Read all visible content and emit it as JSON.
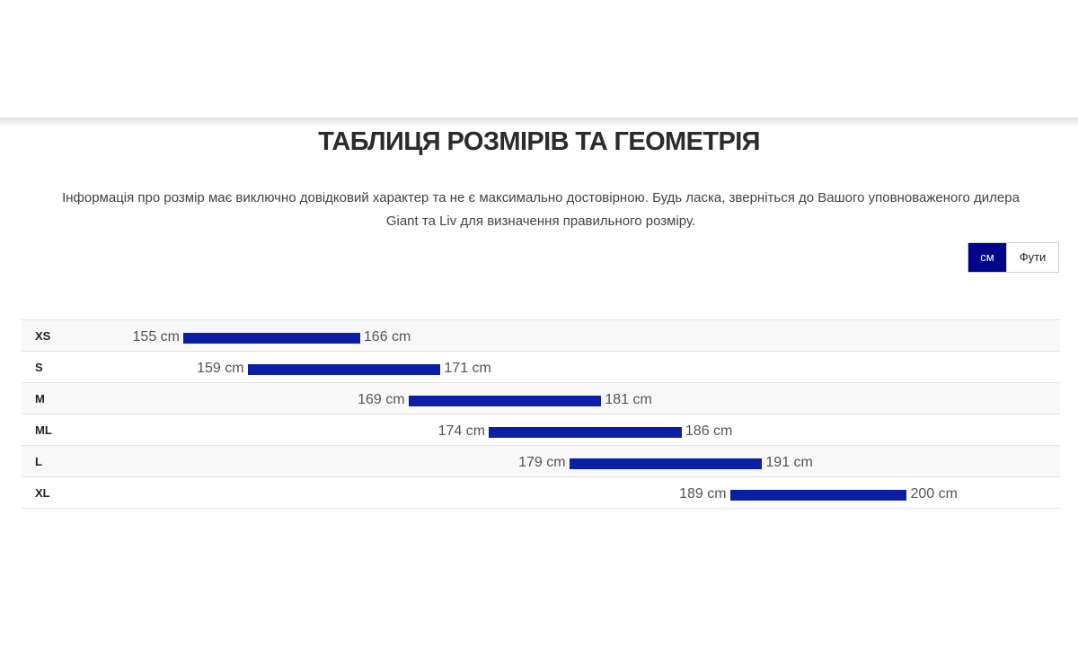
{
  "page": {
    "title": "ТАБЛИЦЯ РОЗМІРІВ ТА ГЕОМЕТРІЯ",
    "info_line1": "Інформація про розмір має виключно довідковий характер та не є максимально достовірною. Будь ласка, зверніться до Вашого уповноваженого дилера",
    "info_line2": "Giant та Liv для визначення правильного розміру."
  },
  "unit_toggle": {
    "cm_label": "см",
    "feet_label": "Фути",
    "selected": "cm"
  },
  "colors": {
    "accent": "#00058c",
    "bar": "#0a1ea6"
  },
  "size_rows": [
    {
      "size": "XS",
      "min_label": "155 cm",
      "max_label": "166 cm",
      "min": 155,
      "max": 166
    },
    {
      "size": "S",
      "min_label": "159 cm",
      "max_label": "171 cm",
      "min": 159,
      "max": 171
    },
    {
      "size": "M",
      "min_label": "169 cm",
      "max_label": "181 cm",
      "min": 169,
      "max": 181
    },
    {
      "size": "ML",
      "min_label": "174 cm",
      "max_label": "186 cm",
      "min": 174,
      "max": 186
    },
    {
      "size": "L",
      "min_label": "179 cm",
      "max_label": "191 cm",
      "min": 179,
      "max": 191
    },
    {
      "size": "XL",
      "min_label": "189 cm",
      "max_label": "200 cm",
      "min": 189,
      "max": 200
    }
  ]
}
